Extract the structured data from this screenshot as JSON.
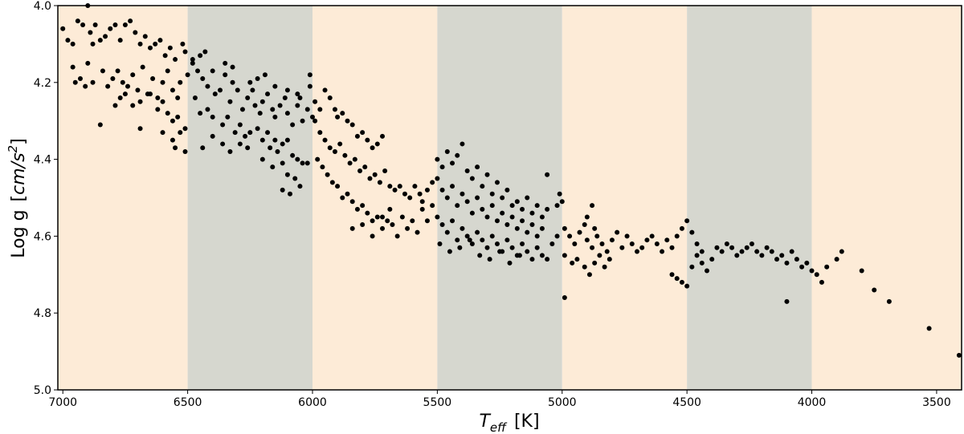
{
  "chart_data": {
    "type": "scatter",
    "title": "",
    "xlabel_main": "T",
    "xlabel_sub": "eff",
    "xlabel_unit": "[K]",
    "ylabel_text": "Log g",
    "ylabel_unit_open": "[",
    "ylabel_unit_main": "cm/s",
    "ylabel_unit_exp": "2",
    "ylabel_unit_close": "]",
    "xlim": [
      7020,
      3400
    ],
    "ylim": [
      5.0,
      4.0
    ],
    "x_inverted": true,
    "y_inverted": true,
    "grid": false,
    "x_ticks": [
      7000,
      6500,
      6000,
      5500,
      5000,
      4500,
      4000,
      3500
    ],
    "x_tick_labels": [
      "7000",
      "6500",
      "6000",
      "5500",
      "5000",
      "4500",
      "4000",
      "3500"
    ],
    "y_ticks": [
      4.0,
      4.2,
      4.4,
      4.6,
      4.8,
      5.0
    ],
    "y_tick_labels": [
      "4.0",
      "4.2",
      "4.4",
      "4.6",
      "4.8",
      "5.0"
    ],
    "bands": [
      {
        "x0": 7020,
        "x1": 6500,
        "color": "#fdebd7"
      },
      {
        "x0": 6500,
        "x1": 6000,
        "color": "#d6d7cf"
      },
      {
        "x0": 6000,
        "x1": 5500,
        "color": "#fdebd7"
      },
      {
        "x0": 5500,
        "x1": 5000,
        "color": "#d6d7cf"
      },
      {
        "x0": 5000,
        "x1": 4500,
        "color": "#fdebd7"
      },
      {
        "x0": 4500,
        "x1": 4000,
        "color": "#d6d7cf"
      },
      {
        "x0": 4000,
        "x1": 3400,
        "color": "#fdebd7"
      }
    ],
    "marker_color": "#000000",
    "points": [
      [
        7000,
        4.06
      ],
      [
        6980,
        4.09
      ],
      [
        6960,
        4.1
      ],
      [
        6940,
        4.04
      ],
      [
        6920,
        4.05
      ],
      [
        6900,
        4.0
      ],
      [
        6890,
        4.07
      ],
      [
        6870,
        4.05
      ],
      [
        6850,
        4.09
      ],
      [
        6830,
        4.08
      ],
      [
        6810,
        4.06
      ],
      [
        6790,
        4.05
      ],
      [
        6770,
        4.09
      ],
      [
        6750,
        4.05
      ],
      [
        6730,
        4.04
      ],
      [
        6710,
        4.07
      ],
      [
        6690,
        4.1
      ],
      [
        6670,
        4.08
      ],
      [
        6650,
        4.11
      ],
      [
        6630,
        4.1
      ],
      [
        6610,
        4.09
      ],
      [
        6590,
        4.13
      ],
      [
        6570,
        4.11
      ],
      [
        6550,
        4.14
      ],
      [
        6520,
        4.1
      ],
      [
        6510,
        4.12
      ],
      [
        6960,
        4.16
      ],
      [
        6950,
        4.2
      ],
      [
        6900,
        4.15
      ],
      [
        6880,
        4.2
      ],
      [
        6840,
        4.17
      ],
      [
        6820,
        4.21
      ],
      [
        6800,
        4.19
      ],
      [
        6780,
        4.17
      ],
      [
        6760,
        4.2
      ],
      [
        6740,
        4.21
      ],
      [
        6720,
        4.18
      ],
      [
        6700,
        4.22
      ],
      [
        6680,
        4.16
      ],
      [
        6660,
        4.23
      ],
      [
        6640,
        4.19
      ],
      [
        6620,
        4.24
      ],
      [
        6600,
        4.2
      ],
      [
        6580,
        4.17
      ],
      [
        6560,
        4.22
      ],
      [
        6540,
        4.24
      ],
      [
        6530,
        4.2
      ],
      [
        6500,
        4.18
      ],
      [
        6790,
        4.26
      ],
      [
        6770,
        4.24
      ],
      [
        6750,
        4.23
      ],
      [
        6720,
        4.26
      ],
      [
        6690,
        4.25
      ],
      [
        6650,
        4.23
      ],
      [
        6620,
        4.27
      ],
      [
        6600,
        4.25
      ],
      [
        6580,
        4.28
      ],
      [
        6560,
        4.3
      ],
      [
        6540,
        4.29
      ],
      [
        6530,
        4.33
      ],
      [
        6510,
        4.32
      ],
      [
        6850,
        4.31
      ],
      [
        6690,
        4.32
      ],
      [
        6600,
        4.33
      ],
      [
        6560,
        4.35
      ],
      [
        6510,
        4.38
      ],
      [
        6550,
        4.37
      ],
      [
        6880,
        4.1
      ],
      [
        6910,
        4.21
      ],
      [
        6930,
        4.19
      ],
      [
        6480,
        4.15
      ],
      [
        6460,
        4.17
      ],
      [
        6440,
        4.19
      ],
      [
        6420,
        4.21
      ],
      [
        6400,
        4.17
      ],
      [
        6390,
        4.23
      ],
      [
        6370,
        4.22
      ],
      [
        6350,
        4.18
      ],
      [
        6330,
        4.25
      ],
      [
        6320,
        4.2
      ],
      [
        6300,
        4.22
      ],
      [
        6280,
        4.27
      ],
      [
        6260,
        4.24
      ],
      [
        6240,
        4.22
      ],
      [
        6230,
        4.26
      ],
      [
        6210,
        4.28
      ],
      [
        6200,
        4.25
      ],
      [
        6180,
        4.23
      ],
      [
        6160,
        4.27
      ],
      [
        6150,
        4.29
      ],
      [
        6130,
        4.26
      ],
      [
        6110,
        4.24
      ],
      [
        6100,
        4.28
      ],
      [
        6080,
        4.31
      ],
      [
        6060,
        4.26
      ],
      [
        6040,
        4.3
      ],
      [
        6020,
        4.27
      ],
      [
        6010,
        4.21
      ],
      [
        6000,
        4.29
      ],
      [
        6470,
        4.24
      ],
      [
        6450,
        4.28
      ],
      [
        6420,
        4.27
      ],
      [
        6400,
        4.29
      ],
      [
        6360,
        4.31
      ],
      [
        6340,
        4.29
      ],
      [
        6310,
        4.33
      ],
      [
        6290,
        4.31
      ],
      [
        6270,
        4.34
      ],
      [
        6250,
        4.33
      ],
      [
        6220,
        4.32
      ],
      [
        6200,
        4.35
      ],
      [
        6180,
        4.33
      ],
      [
        6170,
        4.37
      ],
      [
        6150,
        4.35
      ],
      [
        6140,
        4.38
      ],
      [
        6120,
        4.36
      ],
      [
        6100,
        4.35
      ],
      [
        6080,
        4.39
      ],
      [
        6060,
        4.4
      ],
      [
        6040,
        4.41
      ],
      [
        6020,
        4.41
      ],
      [
        6440,
        4.37
      ],
      [
        6400,
        4.34
      ],
      [
        6360,
        4.36
      ],
      [
        6330,
        4.38
      ],
      [
        6290,
        4.36
      ],
      [
        6260,
        4.37
      ],
      [
        6200,
        4.4
      ],
      [
        6160,
        4.42
      ],
      [
        6120,
        4.41
      ],
      [
        6100,
        4.44
      ],
      [
        6070,
        4.45
      ],
      [
        6050,
        4.47
      ],
      [
        6120,
        4.48
      ],
      [
        6090,
        4.49
      ],
      [
        6480,
        4.14
      ],
      [
        6450,
        4.13
      ],
      [
        6430,
        4.12
      ],
      [
        6350,
        4.15
      ],
      [
        6320,
        4.16
      ],
      [
        6250,
        4.2
      ],
      [
        6220,
        4.19
      ],
      [
        6190,
        4.18
      ],
      [
        6150,
        4.21
      ],
      [
        6100,
        4.22
      ],
      [
        6060,
        4.23
      ],
      [
        6050,
        4.24
      ],
      [
        6010,
        4.18
      ],
      [
        5990,
        4.25
      ],
      [
        5970,
        4.27
      ],
      [
        5950,
        4.22
      ],
      [
        5930,
        4.24
      ],
      [
        5910,
        4.27
      ],
      [
        5900,
        4.29
      ],
      [
        5880,
        4.28
      ],
      [
        5860,
        4.3
      ],
      [
        5840,
        4.31
      ],
      [
        5820,
        4.34
      ],
      [
        5800,
        4.33
      ],
      [
        5780,
        4.35
      ],
      [
        5760,
        4.37
      ],
      [
        5740,
        4.36
      ],
      [
        5720,
        4.34
      ],
      [
        5990,
        4.3
      ],
      [
        5970,
        4.33
      ],
      [
        5950,
        4.35
      ],
      [
        5930,
        4.37
      ],
      [
        5910,
        4.38
      ],
      [
        5890,
        4.36
      ],
      [
        5870,
        4.39
      ],
      [
        5850,
        4.41
      ],
      [
        5830,
        4.4
      ],
      [
        5810,
        4.43
      ],
      [
        5790,
        4.42
      ],
      [
        5770,
        4.45
      ],
      [
        5750,
        4.44
      ],
      [
        5730,
        4.46
      ],
      [
        5710,
        4.43
      ],
      [
        5690,
        4.47
      ],
      [
        5670,
        4.48
      ],
      [
        5650,
        4.47
      ],
      [
        5630,
        4.49
      ],
      [
        5610,
        4.5
      ],
      [
        5590,
        4.47
      ],
      [
        5570,
        4.49
      ],
      [
        5560,
        4.51
      ],
      [
        5540,
        4.48
      ],
      [
        5520,
        4.46
      ],
      [
        5980,
        4.4
      ],
      [
        5960,
        4.42
      ],
      [
        5940,
        4.44
      ],
      [
        5920,
        4.46
      ],
      [
        5900,
        4.47
      ],
      [
        5880,
        4.5
      ],
      [
        5860,
        4.49
      ],
      [
        5840,
        4.51
      ],
      [
        5820,
        4.53
      ],
      [
        5800,
        4.52
      ],
      [
        5780,
        4.54
      ],
      [
        5760,
        4.56
      ],
      [
        5740,
        4.55
      ],
      [
        5720,
        4.58
      ],
      [
        5700,
        4.56
      ],
      [
        5680,
        4.57
      ],
      [
        5660,
        4.6
      ],
      [
        5640,
        4.55
      ],
      [
        5620,
        4.58
      ],
      [
        5600,
        4.56
      ],
      [
        5580,
        4.59
      ],
      [
        5560,
        4.53
      ],
      [
        5540,
        4.56
      ],
      [
        5520,
        4.52
      ],
      [
        5840,
        4.58
      ],
      [
        5800,
        4.57
      ],
      [
        5760,
        4.6
      ],
      [
        5720,
        4.55
      ],
      [
        5690,
        4.53
      ],
      [
        5500,
        4.4
      ],
      [
        5480,
        4.42
      ],
      [
        5460,
        4.38
      ],
      [
        5440,
        4.41
      ],
      [
        5420,
        4.39
      ],
      [
        5400,
        4.36
      ],
      [
        5380,
        4.43
      ],
      [
        5360,
        4.45
      ],
      [
        5340,
        4.42
      ],
      [
        5320,
        4.47
      ],
      [
        5300,
        4.44
      ],
      [
        5280,
        4.49
      ],
      [
        5260,
        4.46
      ],
      [
        5240,
        4.5
      ],
      [
        5220,
        4.48
      ],
      [
        5200,
        4.52
      ],
      [
        5180,
        4.51
      ],
      [
        5160,
        4.53
      ],
      [
        5140,
        4.5
      ],
      [
        5120,
        4.54
      ],
      [
        5100,
        4.52
      ],
      [
        5080,
        4.55
      ],
      [
        5060,
        4.53
      ],
      [
        5500,
        4.45
      ],
      [
        5480,
        4.48
      ],
      [
        5460,
        4.5
      ],
      [
        5440,
        4.47
      ],
      [
        5420,
        4.52
      ],
      [
        5400,
        4.49
      ],
      [
        5380,
        4.51
      ],
      [
        5360,
        4.54
      ],
      [
        5340,
        4.5
      ],
      [
        5320,
        4.53
      ],
      [
        5300,
        4.55
      ],
      [
        5280,
        4.52
      ],
      [
        5260,
        4.56
      ],
      [
        5240,
        4.54
      ],
      [
        5220,
        4.57
      ],
      [
        5200,
        4.55
      ],
      [
        5180,
        4.58
      ],
      [
        5160,
        4.56
      ],
      [
        5140,
        4.59
      ],
      [
        5120,
        4.57
      ],
      [
        5100,
        4.6
      ],
      [
        5080,
        4.58
      ],
      [
        5500,
        4.55
      ],
      [
        5480,
        4.57
      ],
      [
        5460,
        4.59
      ],
      [
        5440,
        4.56
      ],
      [
        5420,
        4.61
      ],
      [
        5400,
        4.58
      ],
      [
        5380,
        4.6
      ],
      [
        5360,
        4.62
      ],
      [
        5340,
        4.59
      ],
      [
        5320,
        4.61
      ],
      [
        5300,
        4.63
      ],
      [
        5280,
        4.6
      ],
      [
        5260,
        4.62
      ],
      [
        5240,
        4.64
      ],
      [
        5220,
        4.61
      ],
      [
        5200,
        4.63
      ],
      [
        5180,
        4.65
      ],
      [
        5160,
        4.62
      ],
      [
        5140,
        4.64
      ],
      [
        5120,
        4.66
      ],
      [
        5100,
        4.63
      ],
      [
        5080,
        4.65
      ],
      [
        5060,
        4.66
      ],
      [
        5040,
        4.62
      ],
      [
        5020,
        4.6
      ],
      [
        5490,
        4.62
      ],
      [
        5450,
        4.64
      ],
      [
        5410,
        4.63
      ],
      [
        5370,
        4.61
      ],
      [
        5330,
        4.65
      ],
      [
        5290,
        4.66
      ],
      [
        5250,
        4.64
      ],
      [
        5210,
        4.67
      ],
      [
        5170,
        4.65
      ],
      [
        5060,
        4.44
      ],
      [
        5010,
        4.49
      ],
      [
        5000,
        4.51
      ],
      [
        5020,
        4.52
      ],
      [
        4990,
        4.58
      ],
      [
        4970,
        4.6
      ],
      [
        4950,
        4.62
      ],
      [
        4930,
        4.59
      ],
      [
        4910,
        4.57
      ],
      [
        4900,
        4.61
      ],
      [
        4880,
        4.63
      ],
      [
        4870,
        4.58
      ],
      [
        4860,
        4.6
      ],
      [
        4840,
        4.62
      ],
      [
        4820,
        4.64
      ],
      [
        4800,
        4.61
      ],
      [
        4780,
        4.59
      ],
      [
        4760,
        4.63
      ],
      [
        4740,
        4.6
      ],
      [
        4720,
        4.62
      ],
      [
        4700,
        4.64
      ],
      [
        4990,
        4.65
      ],
      [
        4960,
        4.67
      ],
      [
        4940,
        4.66
      ],
      [
        4910,
        4.68
      ],
      [
        4890,
        4.7
      ],
      [
        4870,
        4.67
      ],
      [
        4850,
        4.65
      ],
      [
        4830,
        4.68
      ],
      [
        4810,
        4.66
      ],
      [
        4900,
        4.55
      ],
      [
        4880,
        4.52
      ],
      [
        4990,
        4.76
      ],
      [
        4680,
        4.63
      ],
      [
        4660,
        4.61
      ],
      [
        4640,
        4.6
      ],
      [
        4620,
        4.62
      ],
      [
        4600,
        4.64
      ],
      [
        4580,
        4.61
      ],
      [
        4560,
        4.63
      ],
      [
        4540,
        4.6
      ],
      [
        4520,
        4.58
      ],
      [
        4500,
        4.56
      ],
      [
        4480,
        4.59
      ],
      [
        4460,
        4.62
      ],
      [
        4440,
        4.64
      ],
      [
        4560,
        4.7
      ],
      [
        4540,
        4.71
      ],
      [
        4520,
        4.72
      ],
      [
        4500,
        4.73
      ],
      [
        4480,
        4.68
      ],
      [
        4460,
        4.65
      ],
      [
        4440,
        4.67
      ],
      [
        4420,
        4.69
      ],
      [
        4400,
        4.66
      ],
      [
        4380,
        4.63
      ],
      [
        4360,
        4.64
      ],
      [
        4340,
        4.62
      ],
      [
        4320,
        4.63
      ],
      [
        4300,
        4.65
      ],
      [
        4280,
        4.64
      ],
      [
        4260,
        4.63
      ],
      [
        4240,
        4.62
      ],
      [
        4220,
        4.64
      ],
      [
        4200,
        4.65
      ],
      [
        4180,
        4.63
      ],
      [
        4160,
        4.64
      ],
      [
        4140,
        4.66
      ],
      [
        4120,
        4.65
      ],
      [
        4100,
        4.67
      ],
      [
        4080,
        4.64
      ],
      [
        4060,
        4.66
      ],
      [
        4040,
        4.68
      ],
      [
        4020,
        4.67
      ],
      [
        4000,
        4.69
      ],
      [
        3980,
        4.7
      ],
      [
        3960,
        4.72
      ],
      [
        3940,
        4.68
      ],
      [
        3900,
        4.66
      ],
      [
        3880,
        4.64
      ],
      [
        3800,
        4.69
      ],
      [
        3750,
        4.74
      ],
      [
        3690,
        4.77
      ],
      [
        3530,
        4.84
      ],
      [
        3410,
        4.91
      ],
      [
        4100,
        4.77
      ]
    ]
  }
}
